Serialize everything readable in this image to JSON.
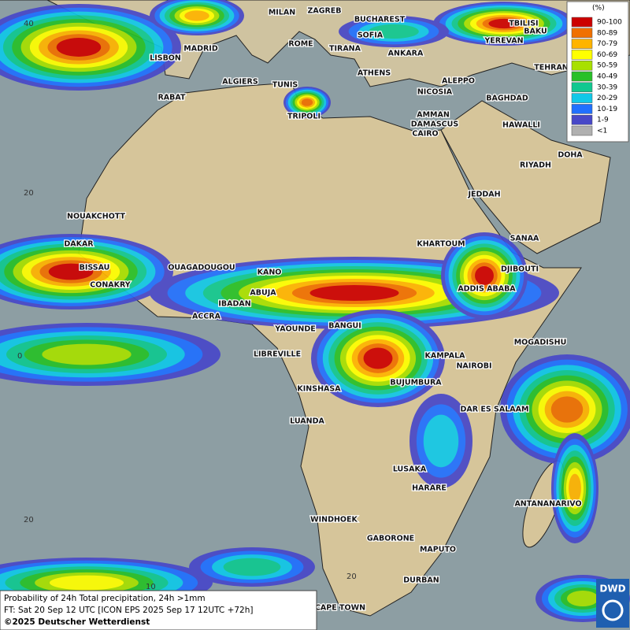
{
  "legend": {
    "title": "(%)",
    "entries": [
      {
        "label": "90-100",
        "color": "#cc0000"
      },
      {
        "label": "80-89",
        "color": "#f07000"
      },
      {
        "label": "70-79",
        "color": "#ffb400"
      },
      {
        "label": "60-69",
        "color": "#ffff00"
      },
      {
        "label": "50-59",
        "color": "#a8e000"
      },
      {
        "label": "40-49",
        "color": "#28c028"
      },
      {
        "label": "30-39",
        "color": "#10c890"
      },
      {
        "label": "20-29",
        "color": "#10c8e8"
      },
      {
        "label": "10-19",
        "color": "#2070ff"
      },
      {
        "label": "1-9",
        "color": "#4848c8"
      },
      {
        "label": "<1",
        "color": "#b0b0b0"
      }
    ]
  },
  "cities": [
    "MILAN",
    "ZAGREB",
    "BUCHAREST",
    "SOFIA",
    "ROME",
    "TIRANA",
    "MADRID",
    "ANKARA",
    "LISBON",
    "TBILISI",
    "YEREVAN",
    "BAKU",
    "TEHRAN",
    "ATHENS",
    "ALGIERS",
    "TUNIS",
    "ALEPPO",
    "RABAT",
    "NICOSIA",
    "BAGHDAD",
    "DAMASCUS",
    "TRIPOLI",
    "AMMAN",
    "HAWALLI",
    "CAIRO",
    "DOHA",
    "RIYADH",
    "JEDDAH",
    "NOUAKCHOTT",
    "KHARTOUM",
    "SANAA",
    "DAKAR",
    "BISSAU",
    "OUAGADOUGOU",
    "KANO",
    "DJIBOUTI",
    "CONAKRY",
    "ABUJA",
    "ADDIS ABABA",
    "IBADAN",
    "ACCRA",
    "YAOUNDE",
    "BANGUI",
    "MOGADISHU",
    "LIBREVILLE",
    "KAMPALA",
    "NAIROBI",
    "KINSHASA",
    "BUJUMBURA",
    "DAR ES SALAAM",
    "LUANDA",
    "LUSAKA",
    "HARARE",
    "ANTANANARIVO",
    "WINDHOEK",
    "GABORONE",
    "MAPUTO",
    "DURBAN",
    "CAPE TOWN"
  ],
  "grid_labels": [
    "40",
    "20",
    "0",
    "20",
    "20",
    "10"
  ],
  "footer": {
    "line1": "Probability of 24h Total precipitation, 24h >1mm",
    "line2": "FT: Sat 20 Sep 12 UTC [ICON EPS 2025 Sep 17 12UTC +72h]",
    "line3": "©2025 Deutscher Wetterdienst"
  },
  "logo": "DWD"
}
